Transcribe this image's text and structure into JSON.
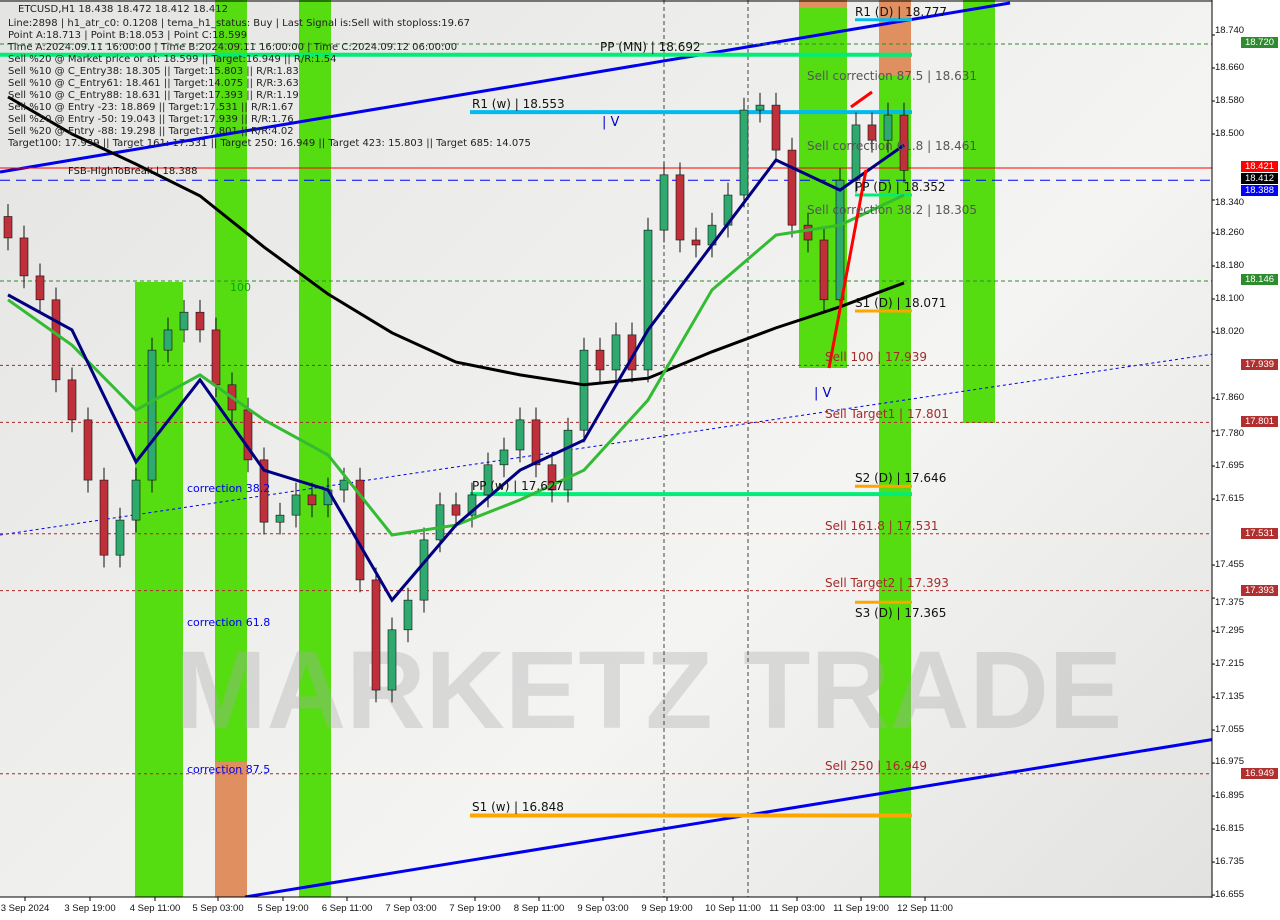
{
  "header": {
    "symbol_line": "ETCUSD,H1  18.438 18.472 18.412 18.412",
    "lines": [
      "Line:2898 | h1_atr_c0: 0.1208 | tema_h1_status: Buy | Last Signal is:Sell with stoploss:19.67",
      "Point A:18.713 | Point B:18.053 | Point C:18.599",
      "Time A:2024.09.11 16:00:00 | Time B:2024.09.11 16:00:00 | Time C:2024.09.12 06:00:00",
      "Sell %20 @ Market price or at: 18.599 || Target:16.949 || R/R:1.54",
      "Sell %10 @ C_Entry38: 18.305 || Target:15.803 || R/R:1.83",
      "Sell %10 @ C_Entry61: 18.461 || Target:14.075 || R/R:3.63",
      "Sell %10 @ C_Entry88: 18.631 || Target:17.393 || R/R:1.19",
      "Sell %10 @ Entry -23: 18.869 || Target:17.531 || R/R:1.67",
      "Sell %20 @ Entry -50: 19.043 || Target:17.939 || R/R:1.76",
      "Sell %20 @ Entry -88: 19.298 || Target:17.801 || R/R:4.02",
      "Target100: 17.939 || Target 161: 17.531 || Target 250: 16.949 || Target 423: 15.803 || Target 685: 14.075"
    ]
  },
  "chart_data": {
    "type": "candlestick",
    "symbol": "ETCUSD",
    "timeframe": "H1",
    "ylim": [
      16.655,
      18.76
    ],
    "y_ticks": [
      "18.740",
      "18.660",
      "18.580",
      "18.500",
      "18.340",
      "18.260",
      "18.180",
      "18.100",
      "18.020",
      "17.860",
      "17.780",
      "17.695",
      "17.615",
      "17.455",
      "17.375",
      "17.295",
      "17.215",
      "17.135",
      "17.055",
      "16.975",
      "16.895",
      "16.815",
      "16.735",
      "16.655"
    ],
    "x_ticks": [
      "3 Sep 2024",
      "3 Sep 19:00",
      "4 Sep 11:00",
      "5 Sep 03:00",
      "5 Sep 19:00",
      "6 Sep 11:00",
      "7 Sep 03:00",
      "7 Sep 19:00",
      "8 Sep 11:00",
      "9 Sep 03:00",
      "9 Sep 19:00",
      "10 Sep 11:00",
      "11 Sep 03:00",
      "11 Sep 19:00",
      "12 Sep 11:00"
    ],
    "bar_interval_hours": 4,
    "open_first": 18.3,
    "closes": [
      18.248,
      18.156,
      18.098,
      17.904,
      17.807,
      17.661,
      17.479,
      17.564,
      17.661,
      17.976,
      18.025,
      18.068,
      18.025,
      17.892,
      17.831,
      17.71,
      17.559,
      17.576,
      17.625,
      17.601,
      17.637,
      17.661,
      17.419,
      17.152,
      17.298,
      17.37,
      17.516,
      17.601,
      17.576,
      17.625,
      17.698,
      17.734,
      17.807,
      17.698,
      17.637,
      17.782,
      17.976,
      17.928,
      18.013,
      17.928,
      18.267,
      18.401,
      18.243,
      18.231,
      18.279,
      18.352,
      18.558,
      18.57,
      18.461,
      18.279,
      18.243,
      18.098,
      18.388,
      18.522,
      18.485,
      18.546,
      18.412
    ],
    "ma_every_bars": 4,
    "ma_black": [
      18.59,
      18.5,
      18.427,
      18.35,
      18.226,
      18.112,
      18.018,
      17.947,
      17.916,
      17.892,
      17.908,
      17.972,
      18.03,
      18.081,
      18.139
    ],
    "ma_navy": [
      18.11,
      18.025,
      17.705,
      17.904,
      17.685,
      17.637,
      17.37,
      17.552,
      17.685,
      17.758,
      18.025,
      18.231,
      18.437,
      18.364,
      18.473
    ],
    "ma_green": [
      18.098,
      17.988,
      17.831,
      17.916,
      17.807,
      17.722,
      17.528,
      17.552,
      17.613,
      17.685,
      17.855,
      18.122,
      18.255,
      18.279,
      18.352
    ],
    "levels": [
      {
        "label": "PP (MN) | 18.692",
        "price": 18.692,
        "color": "#00ee77",
        "style": "thick"
      },
      {
        "label": "R1 (w) | 18.553",
        "price": 18.553,
        "color": "#00bbee",
        "style": "thick"
      },
      {
        "label": "R1 (D) | 18.777",
        "price": 18.777,
        "color": "#00bbee",
        "style": "short"
      },
      {
        "label": "Sell correction 87.5 | 18.631",
        "price": 18.631,
        "color": "#555",
        "style": "text"
      },
      {
        "label": "Sell correction 61.8 | 18.461",
        "price": 18.461,
        "color": "#555",
        "style": "text"
      },
      {
        "label": "FSB-HighToBreak | 18.388",
        "price": 18.388,
        "color": "#0000ff",
        "style": "dashed"
      },
      {
        "label": "PP (D) | 18.352",
        "price": 18.352,
        "color": "#00ee77",
        "style": "short"
      },
      {
        "label": "Sell correction 38.2 | 18.305",
        "price": 18.305,
        "color": "#555",
        "style": "text"
      },
      {
        "label": "S1 (D) | 18.071",
        "price": 18.071,
        "color": "#ffa500",
        "style": "short"
      },
      {
        "label": "Sell 100 | 17.939",
        "price": 17.939,
        "color": "#a52a2a",
        "style": "dotted"
      },
      {
        "label": "Sell Target1 | 17.801",
        "price": 17.801,
        "color": "#a52a2a",
        "style": "dotted"
      },
      {
        "label": "S2 (D) | 17.646",
        "price": 17.646,
        "color": "#ffa500",
        "style": "short"
      },
      {
        "label": "PP (w) | 17.627",
        "price": 17.627,
        "color": "#00ee77",
        "style": "thick"
      },
      {
        "label": "Sell 161.8 | 17.531",
        "price": 17.531,
        "color": "#a52a2a",
        "style": "dotted"
      },
      {
        "label": "S3 (D) | 17.365",
        "price": 17.365,
        "color": "#ffa500",
        "style": "short"
      },
      {
        "label": "Sell Target2 | 17.393",
        "price": 17.393,
        "color": "#a52a2a",
        "style": "dotted"
      },
      {
        "label": "Sell 250 | 16.949",
        "price": 16.949,
        "color": "#a52a2a",
        "style": "dotted"
      },
      {
        "label": "S1 (w) | 16.848",
        "price": 16.848,
        "color": "#ffa500",
        "style": "thick"
      }
    ],
    "price_tags": [
      {
        "text": "18.720",
        "price": 18.72,
        "color": "#2e8b2e"
      },
      {
        "text": "18.421",
        "price": 18.421,
        "color": "#ff0000"
      },
      {
        "text": "18.412",
        "price": 18.412,
        "color": "#000000"
      },
      {
        "text": "18.388",
        "price": 18.388,
        "color": "#0000ff"
      },
      {
        "text": "18.146",
        "price": 18.146,
        "color": "#2e8b2e"
      },
      {
        "text": "17.939",
        "price": 17.939,
        "color": "#b03030"
      },
      {
        "text": "17.801",
        "price": 17.801,
        "color": "#b03030"
      },
      {
        "text": "17.531",
        "price": 17.531,
        "color": "#b03030"
      },
      {
        "text": "17.393",
        "price": 17.393,
        "color": "#b03030"
      },
      {
        "text": "16.949",
        "price": 16.949,
        "color": "#b03030"
      }
    ],
    "annotations": [
      "correction 38.2",
      "correction 61.8",
      "correction 87.5",
      "100",
      "| V",
      "| V"
    ],
    "watermark": "MARKETZ TRADE",
    "colors": {
      "bull": "#2eaa6e",
      "bear": "#c0303a",
      "band_green": "#55dd11",
      "band_orange": "#e09060"
    }
  }
}
